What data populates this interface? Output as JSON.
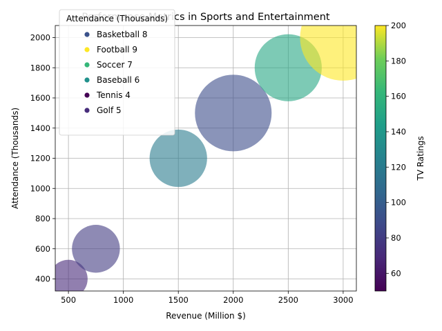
{
  "chart_data": {
    "type": "scatter",
    "title": "Performance Metrics in Sports and Entertainment",
    "xlabel": "Revenue (Million $)",
    "ylabel": "Attendance (Thousands)",
    "xlim": [
      380,
      3120
    ],
    "ylim": [
      320,
      2080
    ],
    "xticks": [
      500,
      1000,
      1500,
      2000,
      2500,
      3000
    ],
    "yticks": [
      400,
      600,
      800,
      1000,
      1200,
      1400,
      1600,
      1800,
      2000
    ],
    "grid": true,
    "legend": {
      "title": "Attendance (Thousands)",
      "placement": "top-left",
      "entries": [
        {
          "label": "Basketball 8",
          "color": "#3b528b"
        },
        {
          "label": "Football 9",
          "color": "#fde725"
        },
        {
          "label": "Soccer 7",
          "color": "#35b779"
        },
        {
          "label": "Baseball 6",
          "color": "#21918c"
        },
        {
          "label": "Tennis 4",
          "color": "#440154"
        },
        {
          "label": "Golf 5",
          "color": "#472d7b"
        }
      ]
    },
    "colorbar": {
      "label": "TV Ratings",
      "range": [
        50,
        200
      ],
      "ticks": [
        60,
        80,
        100,
        120,
        140,
        160,
        180,
        200
      ],
      "colormap": "viridis"
    },
    "series": [
      {
        "revenue": 500,
        "attendance": 400,
        "tv_ratings": 70,
        "size": 4
      },
      {
        "revenue": 750,
        "attendance": 600,
        "tv_ratings": 80,
        "size": 5
      },
      {
        "revenue": 1500,
        "attendance": 1200,
        "tv_ratings": 120,
        "size": 6
      },
      {
        "revenue": 2000,
        "attendance": 1500,
        "tv_ratings": 90,
        "size": 8
      },
      {
        "revenue": 2500,
        "attendance": 1800,
        "tv_ratings": 150,
        "size": 7
      },
      {
        "revenue": 3000,
        "attendance": 2000,
        "tv_ratings": 200,
        "size": 9
      }
    ]
  }
}
